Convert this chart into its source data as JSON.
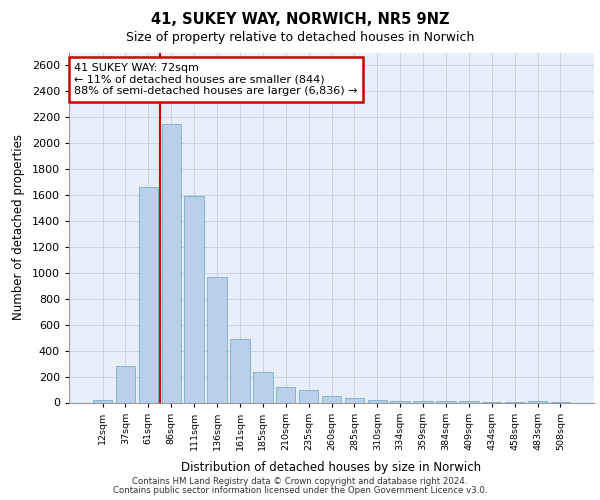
{
  "title_line1": "41, SUKEY WAY, NORWICH, NR5 9NZ",
  "title_line2": "Size of property relative to detached houses in Norwich",
  "xlabel": "Distribution of detached houses by size in Norwich",
  "ylabel": "Number of detached properties",
  "categories": [
    "12sqm",
    "37sqm",
    "61sqm",
    "86sqm",
    "111sqm",
    "136sqm",
    "161sqm",
    "185sqm",
    "210sqm",
    "235sqm",
    "260sqm",
    "285sqm",
    "310sqm",
    "334sqm",
    "359sqm",
    "384sqm",
    "409sqm",
    "434sqm",
    "458sqm",
    "483sqm",
    "508sqm"
  ],
  "values": [
    18,
    280,
    1660,
    2150,
    1590,
    970,
    490,
    235,
    120,
    95,
    50,
    33,
    20,
    12,
    10,
    10,
    8,
    5,
    3,
    10,
    5
  ],
  "bar_color": "#b8d0ea",
  "bar_edge_color": "#7aaec8",
  "grid_color": "#c8d4e4",
  "background_color": "#e8eef8",
  "vline_color": "#cc0000",
  "vline_pos": 2.5,
  "annotation_text": "41 SUKEY WAY: 72sqm\n← 11% of detached houses are smaller (844)\n88% of semi-detached houses are larger (6,836) →",
  "annotation_box_color": "#cc0000",
  "ylim": [
    0,
    2700
  ],
  "yticks": [
    0,
    200,
    400,
    600,
    800,
    1000,
    1200,
    1400,
    1600,
    1800,
    2000,
    2200,
    2400,
    2600
  ],
  "footer_line1": "Contains HM Land Registry data © Crown copyright and database right 2024.",
  "footer_line2": "Contains public sector information licensed under the Open Government Licence v3.0."
}
